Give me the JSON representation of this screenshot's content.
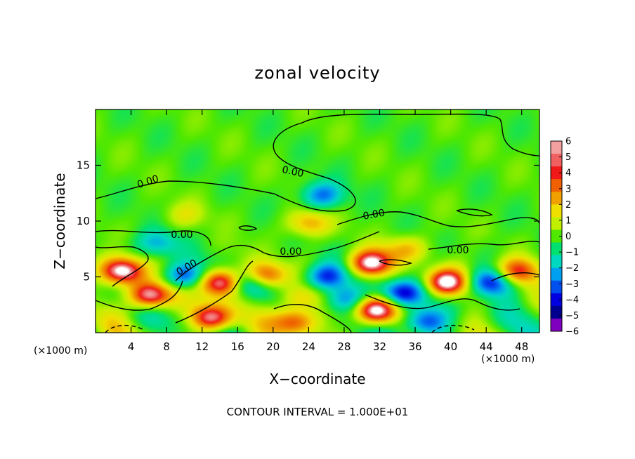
{
  "chart_data": {
    "type": "heatmap",
    "title": "zonal velocity",
    "xlabel": "X−coordinate",
    "ylabel": "Z−coordinate",
    "x_unit": "(×1000 m)",
    "y_unit": "(×1000 m)",
    "xlim": [
      0,
      50
    ],
    "ylim": [
      0,
      20
    ],
    "x_ticks": [
      4,
      8,
      12,
      16,
      20,
      24,
      28,
      32,
      36,
      40,
      44,
      48
    ],
    "y_ticks": [
      5,
      10,
      15
    ],
    "colorbar": {
      "min": -6,
      "max": 6,
      "ticks": [
        "6",
        "5",
        "4",
        "3",
        "2",
        "1",
        "0",
        "−1",
        "−2",
        "−3",
        "−4",
        "−5",
        "−6"
      ],
      "colors": [
        "#f4a0a0",
        "#f06060",
        "#f01818",
        "#f06000",
        "#f0a000",
        "#f0e000",
        "#c0f000",
        "#50e800",
        "#00e070",
        "#00d8c0",
        "#00a0f0",
        "#0050f0",
        "#0000e0",
        "#000090",
        "#8000c0"
      ]
    },
    "contour_labels": [
      "0.00",
      "0.00",
      "0.00",
      "0.00",
      "0.00",
      "0.00",
      "0.00"
    ],
    "contour_interval_text": "CONTOUR INTERVAL = 1.000E+01",
    "features": [
      {
        "x": 3.0,
        "z": 5.5,
        "u": 7
      },
      {
        "x": 6.0,
        "z": 3.3,
        "u": 7
      },
      {
        "x": 14.0,
        "z": 4.5,
        "u": 7
      },
      {
        "x": 13.0,
        "z": 1.3,
        "u": 6
      },
      {
        "x": 19.0,
        "z": 5.0,
        "u": 6
      },
      {
        "x": 23.0,
        "z": 3.0,
        "u": 3
      },
      {
        "x": 31.0,
        "z": 6.2,
        "u": 7
      },
      {
        "x": 39.5,
        "z": 4.5,
        "u": 7
      },
      {
        "x": 31.5,
        "z": 2.0,
        "u": 7
      },
      {
        "x": 22.5,
        "z": 1.0,
        "u": 5
      },
      {
        "x": 47.5,
        "z": 5.5,
        "u": 5
      },
      {
        "x": 10.0,
        "z": 5.0,
        "u": -4.5
      },
      {
        "x": 17.5,
        "z": 4.5,
        "u": -4.5
      },
      {
        "x": 26.0,
        "z": 5.0,
        "u": -5
      },
      {
        "x": 34.5,
        "z": 3.5,
        "u": -5.5
      },
      {
        "x": 28.0,
        "z": 3.0,
        "u": -3.5
      },
      {
        "x": 44.5,
        "z": 4.5,
        "u": -5
      },
      {
        "x": 37.0,
        "z": 1.0,
        "u": -4.5
      },
      {
        "x": 25.5,
        "z": 12.3,
        "u": -3.5
      },
      {
        "x": 7.0,
        "z": 8.0,
        "u": -2.5
      },
      {
        "x": 24.0,
        "z": 9.8,
        "u": 3
      },
      {
        "x": 10.0,
        "z": 10.5,
        "u": 1.5
      },
      {
        "x": 35.0,
        "z": 7.5,
        "u": 2.5
      }
    ]
  }
}
